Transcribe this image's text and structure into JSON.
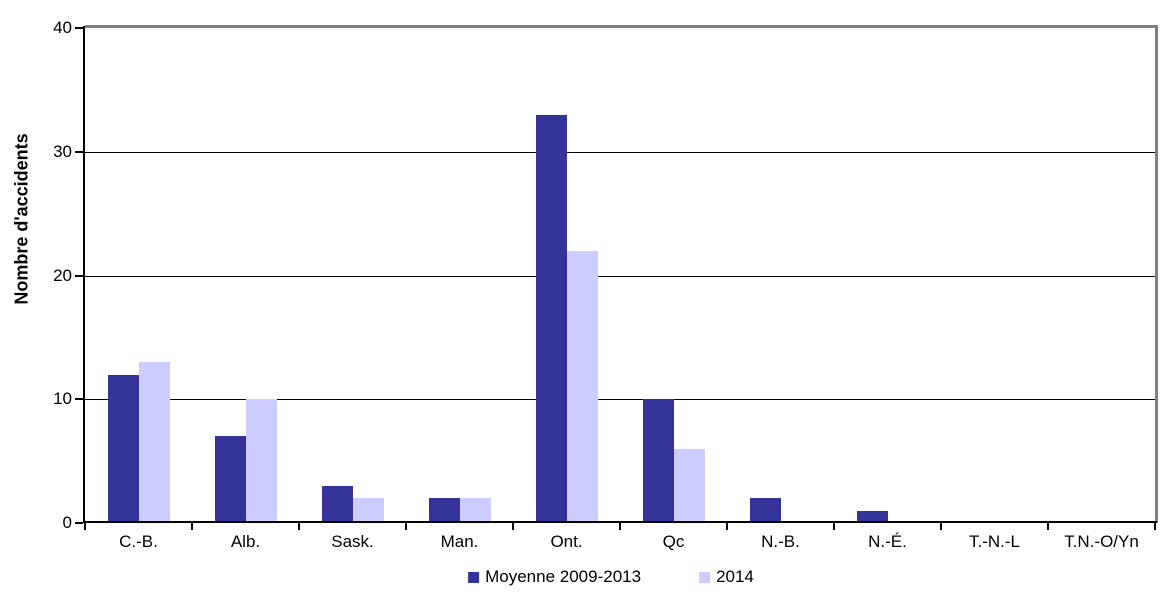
{
  "chart_data": {
    "type": "bar",
    "title": "",
    "xlabel": "",
    "ylabel": "Nombre d'accidents",
    "categories": [
      "C.-B.",
      "Alb.",
      "Sask.",
      "Man.",
      "Ont.",
      "Qc",
      "N.-B.",
      "N.-É.",
      "T.-N.-L",
      "T.N.-O/Yn"
    ],
    "series": [
      {
        "name": "Moyenne 2009-2013",
        "color": "#333399",
        "values": [
          12,
          7,
          3,
          2,
          33,
          10,
          2,
          1,
          0,
          0
        ]
      },
      {
        "name": "2014",
        "color": "#CCCCFF",
        "values": [
          13,
          10,
          2,
          2,
          22,
          6,
          0,
          0,
          0,
          0
        ]
      }
    ],
    "ylim": [
      0,
      40
    ],
    "yticks": [
      0,
      10,
      20,
      30,
      40
    ],
    "grid": "horizontal",
    "legend_position": "bottom"
  },
  "colors": {
    "series_1": "#333399",
    "series_2": "#CCCCFF",
    "plot_border": "#808080",
    "axis_line": "#000000",
    "gridline": "#000000",
    "background": "#FFFFFF"
  }
}
